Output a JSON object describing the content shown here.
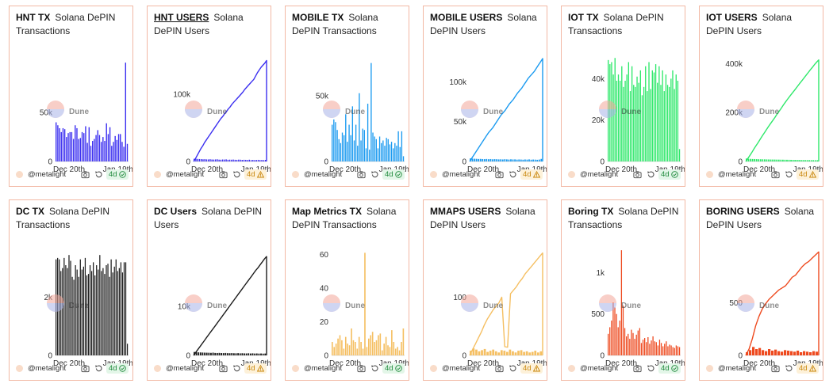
{
  "watermark": "Dune",
  "charts": [
    {
      "title": "HNT TX",
      "subtitle": "Solana DePIN Transactions",
      "underline": false,
      "color": "#3b2ff0",
      "author": "@metalight",
      "age": "4d",
      "status": "ok",
      "chart_data": {
        "type": "bar",
        "xlabels": [
          "Dec 20th",
          "Jan 19th"
        ],
        "yticks": [
          {
            "v": 0,
            "t": "0"
          },
          {
            "v": 50000,
            "t": "50k"
          }
        ],
        "ylim": [
          0,
          110000
        ],
        "values": [
          40000,
          37000,
          34000,
          30000,
          34000,
          33000,
          25000,
          29000,
          30000,
          30000,
          23000,
          37000,
          34000,
          23000,
          24000,
          30000,
          29000,
          36000,
          19000,
          35000,
          16000,
          21000,
          23000,
          27000,
          32000,
          27000,
          20000,
          25000,
          21000,
          39000,
          28000,
          35000,
          16000,
          20000,
          26000,
          22000,
          28000,
          28000,
          20000,
          15000,
          101000,
          18000
        ]
      }
    },
    {
      "title": "HNT USERS",
      "subtitle": "Solana DePIN Users",
      "underline": true,
      "color": "#3b2ff0",
      "author": "@metalight",
      "age": "4d",
      "status": "warn",
      "chart_data": {
        "type": "line_bar",
        "xlabels": [
          "Dec 20th",
          "Jan 19th"
        ],
        "yticks": [
          {
            "v": 0,
            "t": "0"
          },
          {
            "v": 100000,
            "t": "100k"
          }
        ],
        "ylim": [
          0,
          160000
        ],
        "line": [
          0,
          4000,
          9000,
          14000,
          19000,
          23000,
          28000,
          32000,
          36000,
          40000,
          44000,
          48000,
          52000,
          56000,
          60000,
          64000,
          67000,
          71000,
          74000,
          78000,
          81000,
          85000,
          88000,
          91000,
          94000,
          97000,
          100000,
          103000,
          107000,
          110000,
          113000,
          116000,
          119000,
          122000,
          127000,
          132000,
          136000,
          140000,
          143000,
          146000,
          150000
        ],
        "values": [
          4000,
          4000,
          3800,
          3600,
          3500,
          3200,
          3400,
          3100,
          3000,
          3300,
          2900,
          2800,
          3000,
          3200,
          2700,
          2600,
          2900,
          2800,
          3100,
          2500,
          2700,
          2600,
          2800,
          2500,
          2400,
          2700,
          2600,
          2300,
          2500,
          2400,
          2200,
          2600,
          2100,
          2300,
          2000,
          2200,
          2400,
          2100,
          2200,
          2000,
          2300
        ]
      }
    },
    {
      "title": "MOBILE TX",
      "subtitle": "Solana DePIN Transactions",
      "underline": false,
      "color": "#1a9af0",
      "author": "@metalight",
      "age": "4d",
      "status": "ok",
      "chart_data": {
        "type": "bar",
        "xlabels": [
          "Dec 20th",
          "Jan 19th"
        ],
        "yticks": [
          {
            "v": 0,
            "t": "0"
          },
          {
            "v": 50000,
            "t": "50k"
          }
        ],
        "ylim": [
          0,
          82000
        ],
        "values": [
          28000,
          32000,
          30000,
          24000,
          17000,
          14000,
          22000,
          20000,
          36000,
          15000,
          28000,
          20000,
          42000,
          16000,
          28000,
          12000,
          52000,
          16000,
          25000,
          24000,
          10000,
          44000,
          9000,
          75000,
          22000,
          19000,
          17000,
          10000,
          19000,
          14000,
          16000,
          12000,
          18000,
          17000,
          13000,
          15000,
          10000,
          14000,
          12000,
          23000,
          11000,
          23000,
          4000
        ]
      }
    },
    {
      "title": "MOBILE USERS",
      "subtitle": "Solana DePIN Users",
      "underline": false,
      "color": "#1a9af0",
      "author": "@metalight",
      "age": "4d",
      "status": "warn",
      "chart_data": {
        "type": "line_bar",
        "xlabels": [
          "Dec 20th",
          "Jan 19th"
        ],
        "yticks": [
          {
            "v": 0,
            "t": "0"
          },
          {
            "v": 50000,
            "t": "50k"
          },
          {
            "v": 100000,
            "t": "100k"
          }
        ],
        "ylim": [
          0,
          135000
        ],
        "line": [
          0,
          4000,
          8000,
          12000,
          16000,
          20000,
          24000,
          28000,
          32000,
          36000,
          39000,
          42000,
          46000,
          50000,
          54000,
          58000,
          61000,
          64000,
          68000,
          72000,
          75000,
          78000,
          82000,
          86000,
          89000,
          92000,
          96000,
          100000,
          104000,
          107000,
          110000,
          113000,
          117000,
          121000,
          125000,
          129000
        ],
        "values": [
          3800,
          3600,
          3400,
          3300,
          3100,
          3200,
          3000,
          2900,
          3100,
          2800,
          3000,
          2700,
          2900,
          2800,
          2600,
          2700,
          2500,
          2800,
          2600,
          2400,
          2700,
          2500,
          2600,
          2300,
          2500,
          2400,
          2200,
          2500,
          2300,
          2600,
          2200,
          2400,
          2300,
          2100,
          2400,
          3200
        ]
      }
    },
    {
      "title": "IOT TX",
      "subtitle": "Solana DePIN Transactions",
      "underline": false,
      "color": "#2ee86a",
      "author": "@metalight",
      "age": "4d",
      "status": "ok",
      "chart_data": {
        "type": "bar",
        "xlabels": [
          "Dec 20th",
          "Jan 19th"
        ],
        "yticks": [
          {
            "v": 0,
            "t": "0"
          },
          {
            "v": 20000,
            "t": "20k"
          },
          {
            "v": 40000,
            "t": "40k"
          }
        ],
        "ylim": [
          0,
          52000
        ],
        "values": [
          49000,
          47000,
          48000,
          42000,
          50000,
          39000,
          42000,
          39000,
          46000,
          36000,
          39000,
          42000,
          48000,
          34000,
          46000,
          37000,
          36000,
          41000,
          38000,
          44000,
          32000,
          36000,
          46000,
          34000,
          48000,
          35000,
          44000,
          43000,
          47000,
          38000,
          46000,
          37000,
          44000,
          34000,
          42000,
          37000,
          36000,
          40000,
          44000,
          35000,
          42000,
          39000,
          6000
        ]
      }
    },
    {
      "title": "IOT USERS",
      "subtitle": "Solana DePIN Users",
      "underline": false,
      "color": "#2ee86a",
      "author": "@metalight",
      "age": "4d",
      "status": "warn",
      "chart_data": {
        "type": "line_bar",
        "xlabels": [
          "Dec 20th",
          "Jan 19th"
        ],
        "yticks": [
          {
            "v": 0,
            "t": "0"
          },
          {
            "v": 200000,
            "t": "200k"
          },
          {
            "v": 400000,
            "t": "400k"
          }
        ],
        "ylim": [
          0,
          440000
        ],
        "line": [
          0,
          12000,
          25000,
          38000,
          52000,
          65000,
          78000,
          92000,
          105000,
          118000,
          131000,
          144000,
          156000,
          168000,
          180000,
          193000,
          205000,
          217000,
          230000,
          242000,
          254000,
          265000,
          276000,
          287000,
          298000,
          309000,
          320000,
          331000,
          342000,
          353000,
          364000,
          375000,
          385000,
          396000,
          406000,
          415000
        ],
        "values": [
          12000,
          11000,
          10500,
          10000,
          9800,
          9500,
          9200,
          9000,
          8800,
          8600,
          8400,
          8200,
          8000,
          7900,
          7800,
          7600,
          7500,
          7300,
          7200,
          7000,
          6900,
          6800,
          6600,
          6500,
          6400,
          6300,
          6200,
          6000,
          5900,
          5800,
          5700,
          5600,
          5500,
          5400,
          5300,
          5200
        ]
      }
    },
    {
      "title": "DC TX",
      "subtitle": "Solana DePIN Transactions",
      "underline": false,
      "color": "#1c1c1c",
      "author": "@metalight",
      "age": "4d",
      "status": "ok",
      "chart_data": {
        "type": "bar",
        "xlabels": [
          "Dec 20th",
          "Jan 19th"
        ],
        "yticks": [
          {
            "v": 0,
            "t": "0"
          },
          {
            "v": 2000,
            "t": "2k"
          }
        ],
        "ylim": [
          0,
          3700
        ],
        "values": [
          3300,
          3350,
          3300,
          2900,
          3000,
          3350,
          3100,
          3000,
          3450,
          3250,
          2700,
          2600,
          3100,
          2950,
          2700,
          3300,
          2950,
          3050,
          3350,
          2750,
          2800,
          3100,
          2900,
          3200,
          2750,
          3100,
          2950,
          3450,
          2900,
          3000,
          2800,
          3100,
          3150,
          2700,
          3300,
          2850,
          3050,
          3300,
          2900,
          3000,
          3200,
          2850,
          3200,
          3200,
          400
        ]
      }
    },
    {
      "title": "DC Users",
      "subtitle": "Solana DePIN Users",
      "underline": false,
      "color": "#1c1c1c",
      "author": "@metalight",
      "age": "4d",
      "status": "warn",
      "chart_data": {
        "type": "line_bar",
        "xlabels": [
          "Dec 20th",
          "Jan 19th"
        ],
        "yticks": [
          {
            "v": 0,
            "t": "0"
          },
          {
            "v": 10000,
            "t": "10k"
          }
        ],
        "ylim": [
          0,
          22000
        ],
        "line": [
          0,
          600,
          1200,
          1800,
          2400,
          3000,
          3600,
          4200,
          4800,
          5400,
          6000,
          6600,
          7200,
          7800,
          8400,
          9000,
          9600,
          10200,
          10800,
          11400,
          12000,
          12600,
          13200,
          13800,
          14400,
          15000,
          15600,
          16200,
          16800,
          17400,
          17900,
          18500,
          19100,
          19700,
          20200
        ],
        "values": [
          700,
          650,
          620,
          600,
          580,
          560,
          550,
          540,
          520,
          560,
          500,
          490,
          510,
          480,
          470,
          500,
          460,
          450,
          470,
          440,
          430,
          460,
          420,
          440,
          410,
          400,
          430,
          390,
          420,
          380,
          400,
          370,
          390,
          360,
          380
        ]
      }
    },
    {
      "title": "Map Metrics TX",
      "subtitle": "Solana DePIN Transactions",
      "underline": false,
      "color": "#f5bf62",
      "author": "@metalight",
      "age": "4d",
      "status": "ok",
      "chart_data": {
        "type": "bar",
        "xlabels": [
          "Dec 20th",
          "Jan 19th"
        ],
        "yticks": [
          {
            "v": 0,
            "t": "0"
          },
          {
            "v": 20,
            "t": "20"
          },
          {
            "v": 40,
            "t": "40"
          },
          {
            "v": 60,
            "t": "60"
          }
        ],
        "ylim": [
          0,
          64
        ],
        "values": [
          8,
          5,
          7,
          10,
          12,
          9,
          4,
          11,
          7,
          6,
          16,
          9,
          8,
          4,
          11,
          8,
          4,
          61,
          5,
          10,
          12,
          14,
          8,
          9,
          12,
          13,
          3,
          7,
          11,
          6,
          5,
          15,
          8,
          4,
          5,
          3,
          8,
          16
        ]
      }
    },
    {
      "title": "MMAPS USERS",
      "subtitle": "Solana DePIN Users",
      "underline": false,
      "color": "#f5bf62",
      "author": "@metalight",
      "age": "4d",
      "status": "warn",
      "chart_data": {
        "type": "line_bar",
        "xlabels": [
          "Dec 20th",
          "Jan 19th"
        ],
        "yticks": [
          {
            "v": 0,
            "t": "0"
          },
          {
            "v": 100,
            "t": "100"
          }
        ],
        "ylim": [
          0,
          185
        ],
        "line": [
          0,
          10,
          20,
          30,
          40,
          52,
          62,
          70,
          78,
          84,
          90,
          100,
          15,
          14,
          106,
          112,
          118,
          126,
          132,
          140,
          146,
          152,
          158,
          164,
          170,
          176
        ],
        "values": [
          8,
          12,
          10,
          7,
          9,
          11,
          6,
          8,
          10,
          7,
          5,
          9,
          8,
          6,
          10,
          7,
          5,
          8,
          9,
          6,
          7,
          5,
          6,
          8,
          5,
          7
        ]
      }
    },
    {
      "title": "Boring TX",
      "subtitle": "Solana DePIN Transactions",
      "underline": false,
      "color": "#ee4a1f",
      "author": "@metalight",
      "age": "4d",
      "status": "ok",
      "chart_data": {
        "type": "bar",
        "xlabels": [
          "Dec 20th",
          "Jan 19th"
        ],
        "yticks": [
          {
            "v": 0,
            "t": "0"
          },
          {
            "v": 500,
            "t": "500"
          },
          {
            "v": 1000,
            "t": "1k"
          }
        ],
        "ylim": [
          0,
          1300
        ],
        "values": [
          260,
          340,
          420,
          640,
          580,
          500,
          340,
          420,
          1270,
          600,
          330,
          230,
          260,
          200,
          310,
          270,
          200,
          250,
          300,
          330,
          150,
          190,
          210,
          160,
          220,
          140,
          180,
          230,
          170,
          160,
          120,
          190,
          150,
          110,
          140,
          170,
          110,
          130,
          120,
          100,
          90,
          120,
          110,
          100
        ]
      }
    },
    {
      "title": "BORING USERS",
      "subtitle": "Solana DePIN Users",
      "underline": false,
      "color": "#ee4a1f",
      "author": "@metalight",
      "age": "4d",
      "status": "warn",
      "chart_data": {
        "type": "line_bar",
        "xlabels": [
          "Dec 20th",
          "Jan 19th"
        ],
        "yticks": [
          {
            "v": 0,
            "t": "0"
          },
          {
            "v": 500,
            "t": "500"
          }
        ],
        "ylim": [
          0,
          1020
        ],
        "line": [
          0,
          60,
          160,
          280,
          370,
          440,
          490,
          530,
          560,
          590,
          620,
          640,
          660,
          700,
          740,
          760,
          800,
          840,
          870,
          890,
          920,
          950,
          980
        ],
        "values": [
          30,
          50,
          80,
          60,
          70,
          50,
          40,
          60,
          45,
          55,
          40,
          35,
          50,
          45,
          40,
          35,
          45,
          30,
          40,
          35,
          30,
          40,
          35
        ]
      }
    }
  ]
}
